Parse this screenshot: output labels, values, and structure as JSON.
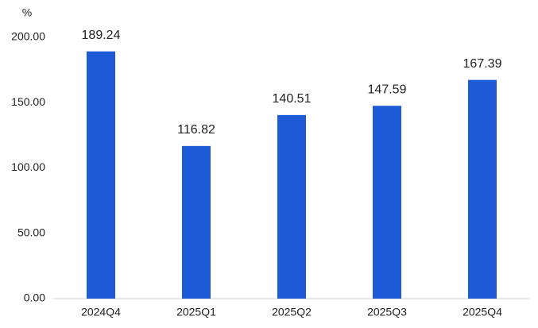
{
  "chart_data": {
    "type": "bar",
    "y_label": "%",
    "categories": [
      "2024Q4",
      "2025Q1",
      "2025Q2",
      "2025Q3",
      "2025Q4"
    ],
    "values": [
      189.24,
      116.82,
      140.51,
      147.59,
      167.39
    ],
    "color": "#1f5ad6",
    "ylim": [
      0,
      200
    ],
    "yticks": [
      {
        "value": 0,
        "label": "0.00"
      },
      {
        "value": 50,
        "label": "50.00"
      },
      {
        "value": 100,
        "label": "100.00"
      },
      {
        "value": 150,
        "label": "150.00"
      },
      {
        "value": 200,
        "label": "200.00"
      }
    ],
    "grid": false
  }
}
